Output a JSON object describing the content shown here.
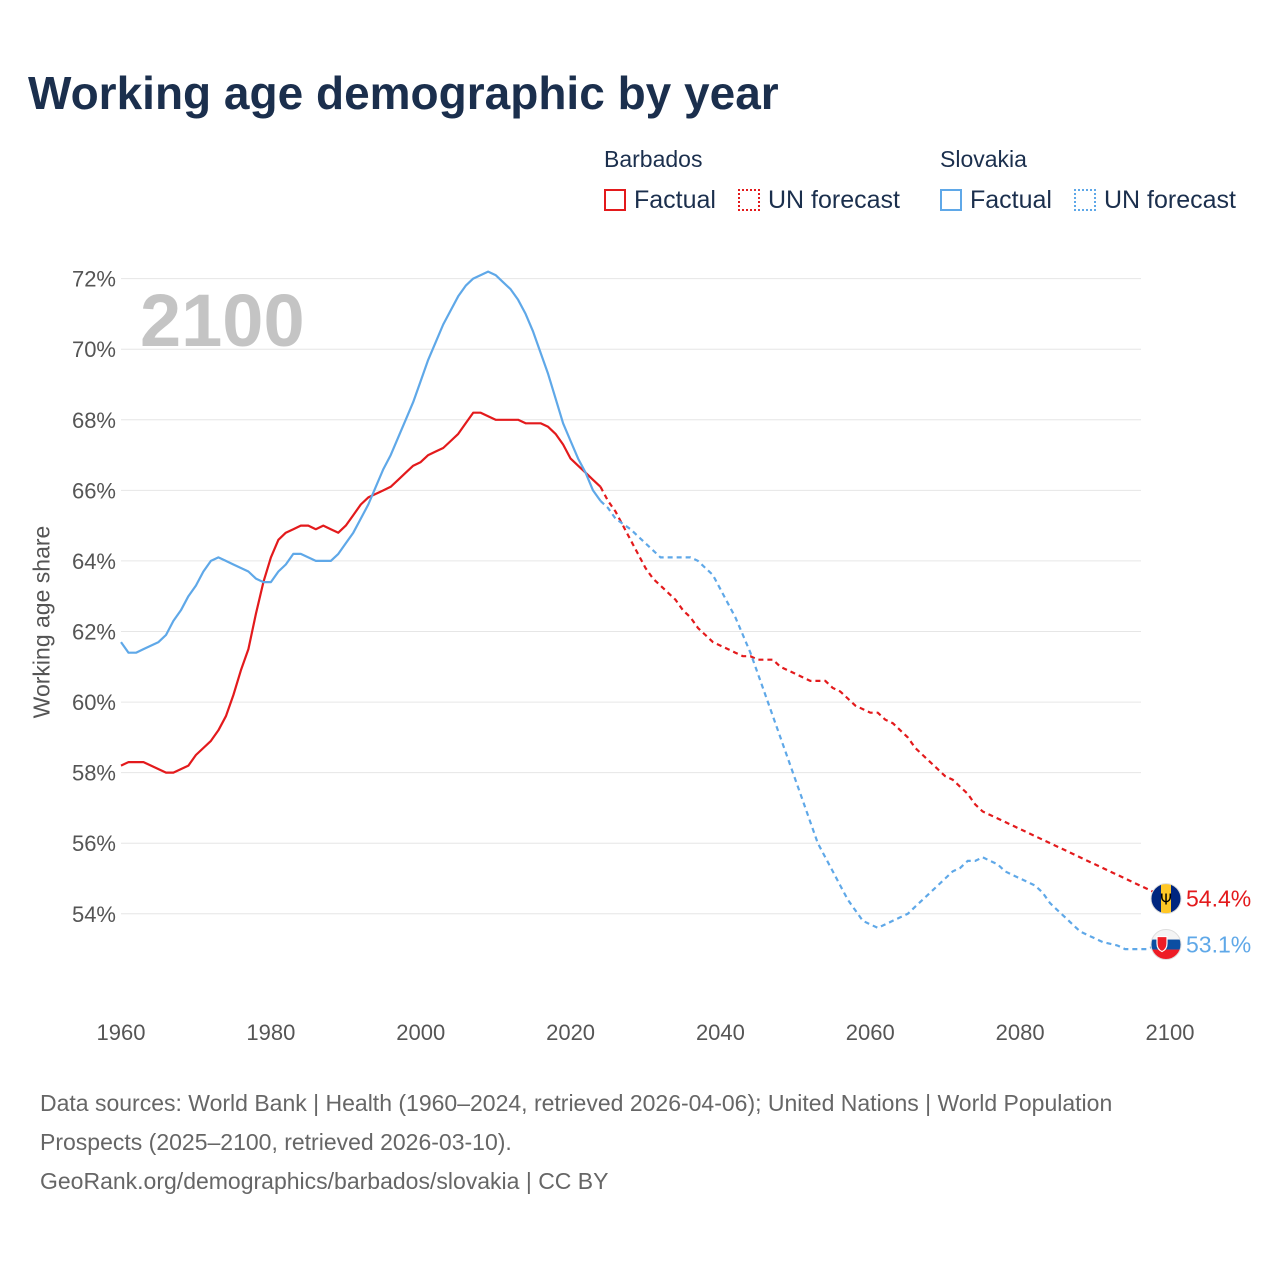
{
  "title": "Working age demographic by year",
  "year_display": "2100",
  "legend": {
    "groups": [
      {
        "name": "Barbados",
        "color": "#e31a1c",
        "factual": "Factual",
        "forecast": "UN forecast"
      },
      {
        "name": "Slovakia",
        "color": "#5fa8e8",
        "factual": "Factual",
        "forecast": "UN forecast"
      }
    ]
  },
  "source": {
    "line1": "Data sources: World Bank | Health (1960–2024, retrieved 2026-04-06); United Nations | World Population Prospects (2025–2100, retrieved 2026-03-10).",
    "line2": "GeoRank.org/demographics/barbados/slovakia | CC BY"
  },
  "chart_data": {
    "type": "line",
    "title": "Working age demographic by year",
    "xlabel": "",
    "ylabel": "Working age share",
    "xlim": [
      1960,
      2100
    ],
    "ylim": [
      51.5,
      72.5
    ],
    "x_ticks": [
      1960,
      1980,
      2000,
      2020,
      2040,
      2060,
      2080,
      2100
    ],
    "y_ticks": [
      54,
      56,
      58,
      60,
      62,
      64,
      66,
      68,
      70,
      72
    ],
    "y_tick_labels": [
      "54%",
      "56%",
      "58%",
      "60%",
      "62%",
      "64%",
      "66%",
      "68%",
      "70%",
      "72%"
    ],
    "x_tick_labels": [
      "1960",
      "1980",
      "2000",
      "2020",
      "2040",
      "2060",
      "2080",
      "2100"
    ],
    "grid": true,
    "series": [
      {
        "name": "Barbados",
        "color": "#e31a1c",
        "end_label": "54.4%",
        "flag": "Barbados",
        "factual": [
          [
            1960,
            58.2
          ],
          [
            1961,
            58.3
          ],
          [
            1963,
            58.3
          ],
          [
            1965,
            58.1
          ],
          [
            1966,
            58.0
          ],
          [
            1967,
            58.0
          ],
          [
            1969,
            58.2
          ],
          [
            1970,
            58.5
          ],
          [
            1972,
            58.9
          ],
          [
            1973,
            59.2
          ],
          [
            1974,
            59.6
          ],
          [
            1975,
            60.2
          ],
          [
            1976,
            60.9
          ],
          [
            1977,
            61.5
          ],
          [
            1978,
            62.5
          ],
          [
            1979,
            63.4
          ],
          [
            1980,
            64.1
          ],
          [
            1981,
            64.6
          ],
          [
            1982,
            64.8
          ],
          [
            1983,
            64.9
          ],
          [
            1984,
            65.0
          ],
          [
            1985,
            65.0
          ],
          [
            1986,
            64.9
          ],
          [
            1987,
            65.0
          ],
          [
            1988,
            64.9
          ],
          [
            1989,
            64.8
          ],
          [
            1990,
            65.0
          ],
          [
            1991,
            65.3
          ],
          [
            1992,
            65.6
          ],
          [
            1993,
            65.8
          ],
          [
            1994,
            65.9
          ],
          [
            1995,
            66.0
          ],
          [
            1996,
            66.1
          ],
          [
            1997,
            66.3
          ],
          [
            1998,
            66.5
          ],
          [
            1999,
            66.7
          ],
          [
            2000,
            66.8
          ],
          [
            2001,
            67.0
          ],
          [
            2002,
            67.1
          ],
          [
            2003,
            67.2
          ],
          [
            2004,
            67.4
          ],
          [
            2005,
            67.6
          ],
          [
            2006,
            67.9
          ],
          [
            2007,
            68.2
          ],
          [
            2008,
            68.2
          ],
          [
            2009,
            68.1
          ],
          [
            2010,
            68.0
          ],
          [
            2011,
            68.0
          ],
          [
            2013,
            68.0
          ],
          [
            2014,
            67.9
          ],
          [
            2016,
            67.9
          ],
          [
            2017,
            67.8
          ],
          [
            2018,
            67.6
          ],
          [
            2019,
            67.3
          ],
          [
            2020,
            66.9
          ],
          [
            2021,
            66.7
          ],
          [
            2022,
            66.5
          ],
          [
            2023,
            66.3
          ],
          [
            2024,
            66.1
          ]
        ],
        "forecast": [
          [
            2024,
            66.1
          ],
          [
            2025,
            65.7
          ],
          [
            2026,
            65.4
          ],
          [
            2027,
            65.0
          ],
          [
            2028,
            64.6
          ],
          [
            2029,
            64.2
          ],
          [
            2030,
            63.8
          ],
          [
            2031,
            63.5
          ],
          [
            2032,
            63.3
          ],
          [
            2033,
            63.1
          ],
          [
            2034,
            62.9
          ],
          [
            2035,
            62.6
          ],
          [
            2036,
            62.4
          ],
          [
            2037,
            62.1
          ],
          [
            2038,
            61.9
          ],
          [
            2039,
            61.7
          ],
          [
            2040,
            61.6
          ],
          [
            2041,
            61.5
          ],
          [
            2042,
            61.4
          ],
          [
            2043,
            61.3
          ],
          [
            2044,
            61.3
          ],
          [
            2045,
            61.2
          ],
          [
            2046,
            61.2
          ],
          [
            2047,
            61.2
          ],
          [
            2048,
            61.0
          ],
          [
            2049,
            60.9
          ],
          [
            2050,
            60.8
          ],
          [
            2051,
            60.7
          ],
          [
            2052,
            60.6
          ],
          [
            2053,
            60.6
          ],
          [
            2054,
            60.6
          ],
          [
            2055,
            60.4
          ],
          [
            2056,
            60.3
          ],
          [
            2057,
            60.1
          ],
          [
            2058,
            59.9
          ],
          [
            2059,
            59.8
          ],
          [
            2060,
            59.7
          ],
          [
            2061,
            59.7
          ],
          [
            2062,
            59.5
          ],
          [
            2063,
            59.4
          ],
          [
            2064,
            59.2
          ],
          [
            2065,
            59.0
          ],
          [
            2066,
            58.7
          ],
          [
            2067,
            58.5
          ],
          [
            2068,
            58.3
          ],
          [
            2069,
            58.1
          ],
          [
            2070,
            57.9
          ],
          [
            2071,
            57.8
          ],
          [
            2072,
            57.6
          ],
          [
            2073,
            57.4
          ],
          [
            2074,
            57.1
          ],
          [
            2075,
            56.9
          ],
          [
            2076,
            56.8
          ],
          [
            2078,
            56.6
          ],
          [
            2080,
            56.4
          ],
          [
            2085,
            55.9
          ],
          [
            2090,
            55.4
          ],
          [
            2095,
            54.9
          ],
          [
            2099,
            54.5
          ],
          [
            2100,
            54.4
          ]
        ]
      },
      {
        "name": "Slovakia",
        "color": "#5fa8e8",
        "end_label": "53.1%",
        "flag": "Slovakia",
        "factual": [
          [
            1960,
            61.7
          ],
          [
            1961,
            61.4
          ],
          [
            1962,
            61.4
          ],
          [
            1963,
            61.5
          ],
          [
            1964,
            61.6
          ],
          [
            1965,
            61.7
          ],
          [
            1966,
            61.9
          ],
          [
            1967,
            62.3
          ],
          [
            1968,
            62.6
          ],
          [
            1969,
            63.0
          ],
          [
            1970,
            63.3
          ],
          [
            1971,
            63.7
          ],
          [
            1972,
            64.0
          ],
          [
            1973,
            64.1
          ],
          [
            1974,
            64.0
          ],
          [
            1975,
            63.9
          ],
          [
            1976,
            63.8
          ],
          [
            1977,
            63.7
          ],
          [
            1978,
            63.5
          ],
          [
            1979,
            63.4
          ],
          [
            1980,
            63.4
          ],
          [
            1981,
            63.7
          ],
          [
            1982,
            63.9
          ],
          [
            1983,
            64.2
          ],
          [
            1984,
            64.2
          ],
          [
            1985,
            64.1
          ],
          [
            1986,
            64.0
          ],
          [
            1987,
            64.0
          ],
          [
            1988,
            64.0
          ],
          [
            1989,
            64.2
          ],
          [
            1990,
            64.5
          ],
          [
            1991,
            64.8
          ],
          [
            1992,
            65.2
          ],
          [
            1993,
            65.6
          ],
          [
            1994,
            66.1
          ],
          [
            1995,
            66.6
          ],
          [
            1996,
            67.0
          ],
          [
            1997,
            67.5
          ],
          [
            1998,
            68.0
          ],
          [
            1999,
            68.5
          ],
          [
            2000,
            69.1
          ],
          [
            2001,
            69.7
          ],
          [
            2002,
            70.2
          ],
          [
            2003,
            70.7
          ],
          [
            2004,
            71.1
          ],
          [
            2005,
            71.5
          ],
          [
            2006,
            71.8
          ],
          [
            2007,
            72.0
          ],
          [
            2008,
            72.1
          ],
          [
            2009,
            72.2
          ],
          [
            2010,
            72.1
          ],
          [
            2011,
            71.9
          ],
          [
            2012,
            71.7
          ],
          [
            2013,
            71.4
          ],
          [
            2014,
            71.0
          ],
          [
            2015,
            70.5
          ],
          [
            2016,
            69.9
          ],
          [
            2017,
            69.3
          ],
          [
            2018,
            68.6
          ],
          [
            2019,
            67.9
          ],
          [
            2020,
            67.4
          ],
          [
            2021,
            66.9
          ],
          [
            2022,
            66.5
          ],
          [
            2023,
            66.0
          ],
          [
            2024,
            65.7
          ]
        ],
        "forecast": [
          [
            2024,
            65.7
          ],
          [
            2025,
            65.5
          ],
          [
            2026,
            65.2
          ],
          [
            2028,
            64.9
          ],
          [
            2030,
            64.5
          ],
          [
            2031,
            64.3
          ],
          [
            2032,
            64.1
          ],
          [
            2034,
            64.1
          ],
          [
            2036,
            64.1
          ],
          [
            2037,
            64.0
          ],
          [
            2038,
            63.8
          ],
          [
            2039,
            63.6
          ],
          [
            2040,
            63.2
          ],
          [
            2041,
            62.8
          ],
          [
            2042,
            62.4
          ],
          [
            2043,
            61.9
          ],
          [
            2044,
            61.4
          ],
          [
            2045,
            60.8
          ],
          [
            2046,
            60.2
          ],
          [
            2047,
            59.6
          ],
          [
            2048,
            59.0
          ],
          [
            2049,
            58.4
          ],
          [
            2050,
            57.8
          ],
          [
            2051,
            57.2
          ],
          [
            2052,
            56.6
          ],
          [
            2053,
            56.0
          ],
          [
            2054,
            55.6
          ],
          [
            2055,
            55.2
          ],
          [
            2056,
            54.8
          ],
          [
            2057,
            54.4
          ],
          [
            2058,
            54.1
          ],
          [
            2059,
            53.8
          ],
          [
            2060,
            53.7
          ],
          [
            2061,
            53.6
          ],
          [
            2062,
            53.7
          ],
          [
            2063,
            53.8
          ],
          [
            2064,
            53.9
          ],
          [
            2065,
            54.0
          ],
          [
            2066,
            54.2
          ],
          [
            2067,
            54.4
          ],
          [
            2068,
            54.6
          ],
          [
            2069,
            54.8
          ],
          [
            2070,
            55.0
          ],
          [
            2071,
            55.2
          ],
          [
            2072,
            55.3
          ],
          [
            2073,
            55.5
          ],
          [
            2074,
            55.5
          ],
          [
            2075,
            55.6
          ],
          [
            2076,
            55.5
          ],
          [
            2077,
            55.4
          ],
          [
            2078,
            55.2
          ],
          [
            2079,
            55.1
          ],
          [
            2080,
            55.0
          ],
          [
            2081,
            54.9
          ],
          [
            2082,
            54.8
          ],
          [
            2083,
            54.6
          ],
          [
            2084,
            54.3
          ],
          [
            2085,
            54.1
          ],
          [
            2086,
            53.9
          ],
          [
            2087,
            53.7
          ],
          [
            2088,
            53.5
          ],
          [
            2089,
            53.4
          ],
          [
            2090,
            53.3
          ],
          [
            2091,
            53.2
          ],
          [
            2093,
            53.1
          ],
          [
            2094,
            53.0
          ],
          [
            2096,
            53.0
          ],
          [
            2097,
            53.0
          ],
          [
            2098,
            53.1
          ],
          [
            2100,
            53.1
          ]
        ]
      }
    ]
  }
}
